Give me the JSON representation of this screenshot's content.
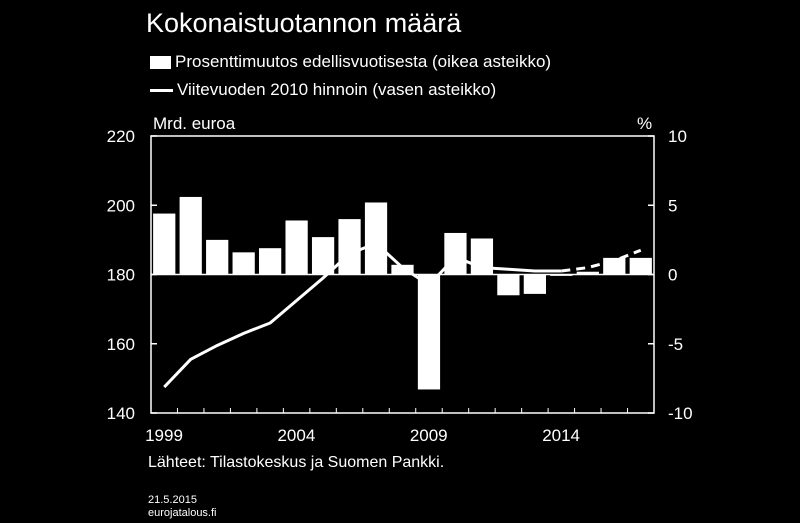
{
  "title": "Kokonaistuotannon määrä",
  "legend": {
    "bars": "Prosenttimuutos edellisvuotisesta (oikea asteikko)",
    "line": "Viitevuoden 2010 hinnoin (vasen asteikko)"
  },
  "left_unit": "Mrd. euroa",
  "right_unit": "%",
  "source": "Lähteet: Tilastokeskus ja Suomen Pankki.",
  "date": "21.5.2015",
  "site": "eurojatalous.fi",
  "chart_data": {
    "type": "bar+line",
    "x_ticks": [
      "1999",
      "2004",
      "2009",
      "2014"
    ],
    "left_axis": {
      "label": "Mrd. euroa",
      "ylim": [
        140,
        220
      ],
      "ticks": [
        "140",
        "160",
        "180",
        "200",
        "220"
      ]
    },
    "right_axis": {
      "label": "%",
      "ylim": [
        -10,
        10
      ],
      "ticks": [
        "-10",
        "-5",
        "0",
        "5",
        "10"
      ]
    },
    "years": [
      1999,
      2000,
      2001,
      2002,
      2003,
      2004,
      2005,
      2006,
      2007,
      2008,
      2009,
      2010,
      2011,
      2012,
      2013,
      2014,
      2015,
      2016,
      2017
    ],
    "series": [
      {
        "name": "Prosenttimuutos edellisvuotisesta (oikea asteikko)",
        "type": "bar",
        "axis": "right",
        "x": [
          1999,
          2000,
          2001,
          2002,
          2003,
          2004,
          2005,
          2006,
          2007,
          2008,
          2009,
          2010,
          2011,
          2012,
          2013,
          2014,
          2015,
          2016,
          2017
        ],
        "values": [
          4.4,
          5.6,
          2.5,
          1.6,
          1.9,
          3.9,
          2.7,
          4.0,
          5.2,
          0.7,
          -8.3,
          3.0,
          2.6,
          -1.5,
          -1.4,
          -0.1,
          0.2,
          1.2,
          1.2
        ]
      },
      {
        "name": "Viitevuoden 2010 hinnoin (vasen asteikko)",
        "type": "line",
        "axis": "left",
        "x": [
          1999,
          2000,
          2001,
          2002,
          2003,
          2004,
          2005,
          2006,
          2007,
          2008,
          2009,
          2010,
          2011,
          2012,
          2013,
          2014
        ],
        "values": [
          147.5,
          155.5,
          159.5,
          163,
          166,
          172.5,
          179,
          186,
          189,
          182,
          177,
          185,
          182,
          181.5,
          181,
          181
        ],
        "projection": {
          "x": [
            2014,
            2015,
            2016,
            2017
          ],
          "values": [
            181,
            182,
            184,
            187
          ]
        }
      }
    ],
    "grid": false
  }
}
